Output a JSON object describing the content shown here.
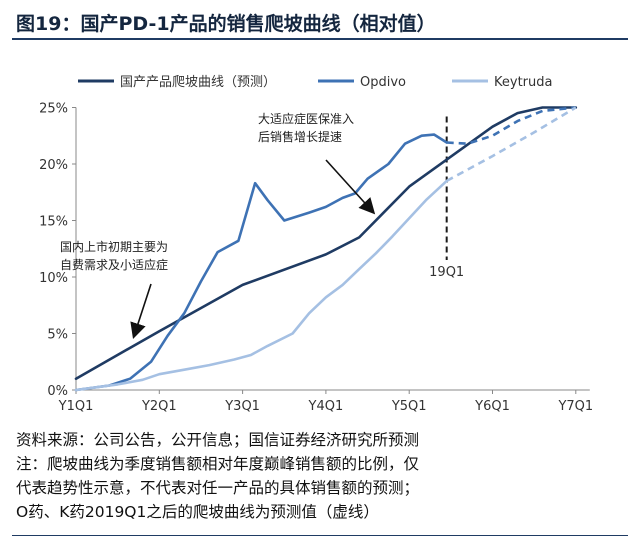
{
  "header": {
    "title": "图19：国产PD-1产品的销售爬坡曲线（相对值）"
  },
  "notes": [
    "资料来源：公司公告，公开信息；国信证券经济研究所预测",
    "注：爬坡曲线为季度销售额相对年度巅峰销售额的比例，仅",
    "代表趋势性示意，不代表对任一产品的具体销售额的预测；",
    "O药、K药2019Q1之后的爬坡曲线为预测值（虚线）"
  ],
  "chart_data": {
    "type": "line",
    "categories": [
      "Y1Q1",
      "Y2Q1",
      "Y3Q1",
      "Y4Q1",
      "Y5Q1",
      "Y6Q1",
      "Y7Q1"
    ],
    "y_ticks": [
      "0%",
      "5%",
      "10%",
      "15%",
      "20%",
      "25%"
    ],
    "ylim": [
      0,
      25
    ],
    "series": [
      {
        "name": "国产产品爬坡曲线（预测）",
        "color": "#1f3b63",
        "points": [
          [
            0,
            1.0
          ],
          [
            1,
            5.2
          ],
          [
            2,
            9.3
          ],
          [
            3,
            12.0
          ],
          [
            3.4,
            13.5
          ],
          [
            4,
            18.0
          ],
          [
            5,
            23.3
          ],
          [
            5.3,
            24.5
          ],
          [
            5.6,
            25.0
          ],
          [
            6,
            25.0
          ]
        ]
      },
      {
        "name": "Opdivo",
        "color": "#3e72b4",
        "points": [
          [
            0,
            0.0
          ],
          [
            0.4,
            0.4
          ],
          [
            0.65,
            1.0
          ],
          [
            0.9,
            2.5
          ],
          [
            1.1,
            4.8
          ],
          [
            1.3,
            6.8
          ],
          [
            1.5,
            9.6
          ],
          [
            1.7,
            12.2
          ],
          [
            1.95,
            13.2
          ],
          [
            2.15,
            18.3
          ],
          [
            2.3,
            16.8
          ],
          [
            2.5,
            15.0
          ],
          [
            2.8,
            15.7
          ],
          [
            3.0,
            16.2
          ],
          [
            3.2,
            17.0
          ],
          [
            3.35,
            17.4
          ],
          [
            3.5,
            18.7
          ],
          [
            3.75,
            20.0
          ],
          [
            3.95,
            21.8
          ],
          [
            4.15,
            22.5
          ],
          [
            4.3,
            22.6
          ],
          [
            4.45,
            21.9
          ]
        ],
        "forecast": [
          [
            4.45,
            21.9
          ],
          [
            4.7,
            21.8
          ],
          [
            5.0,
            22.5
          ],
          [
            5.3,
            23.8
          ],
          [
            5.6,
            24.7
          ],
          [
            6.0,
            25.0
          ]
        ]
      },
      {
        "name": "Keytruda",
        "color": "#a5c0e3",
        "points": [
          [
            0,
            0.0
          ],
          [
            0.5,
            0.5
          ],
          [
            0.8,
            0.9
          ],
          [
            1.0,
            1.4
          ],
          [
            1.3,
            1.8
          ],
          [
            1.6,
            2.2
          ],
          [
            1.9,
            2.7
          ],
          [
            2.1,
            3.1
          ],
          [
            2.3,
            3.9
          ],
          [
            2.6,
            5.0
          ],
          [
            2.8,
            6.8
          ],
          [
            3.0,
            8.2
          ],
          [
            3.2,
            9.3
          ],
          [
            3.4,
            10.7
          ],
          [
            3.6,
            12.1
          ],
          [
            3.8,
            13.6
          ],
          [
            4.0,
            15.2
          ],
          [
            4.2,
            16.8
          ],
          [
            4.45,
            18.5
          ]
        ],
        "forecast": [
          [
            4.45,
            18.5
          ],
          [
            5.0,
            20.7
          ],
          [
            5.5,
            22.8
          ],
          [
            6.0,
            25.0
          ]
        ]
      }
    ],
    "marker": {
      "x": 4.45,
      "label": "19Q1"
    },
    "annotations": [
      {
        "lines": [
          "大适应症医保准入",
          "后销售增长提速"
        ]
      },
      {
        "lines": [
          "国内上市初期主要为",
          "自费需求及小适应症"
        ]
      }
    ]
  }
}
